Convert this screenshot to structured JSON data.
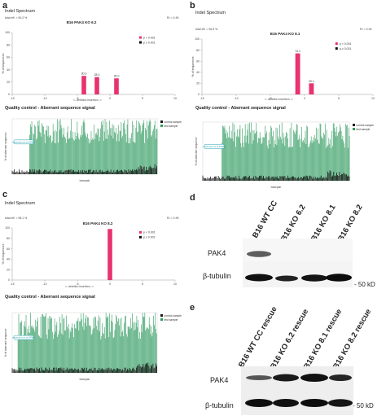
{
  "figure": {
    "panel_a": {
      "letter": "a",
      "indel_header": "Indel Spectrum",
      "chart_title": "B16 PAK4 KO 6.2",
      "total_eff": "total eff. = 90.2 %",
      "r2": "R² = 0.90",
      "legend": [
        "p < 0.001",
        "p ≥ 0.001"
      ],
      "ylabel": "% of sequences",
      "x_hint": "<- deletion   insertion ->",
      "qc_header": "Quality control - Aberrant sequence signal",
      "qc_ylabel": "% of aberrant sequence",
      "qc_xlabel": "basepair",
      "qc_legend": [
        "control sample",
        "test sample"
      ],
      "qc_tag": "expected cut at 189bp"
    },
    "panel_b": {
      "letter": "b",
      "indel_header": "Indel Spectrum",
      "chart_title": "B16 PAK4 KO 8.1",
      "total_eff": "total eff. = 96.9 %",
      "r2": "R² = 0.93",
      "legend": [
        "p < 0.001",
        "p ≥ 0.001"
      ],
      "ylabel": "% of sequences",
      "x_hint": "<- deletion   insertion ->",
      "qc_header": "Quality control - Aberrant sequence signal",
      "qc_ylabel": "% of aberrant sequence",
      "qc_xlabel": "basepair",
      "qc_legend": [
        "control sample",
        "test sample"
      ],
      "qc_tag": "expected cut at 189bp"
    },
    "panel_c": {
      "letter": "c",
      "indel_header": "Indel Spectrum",
      "chart_title": "B16 PAK4 KO 8.2",
      "total_eff": "total eff. = 98.1 %",
      "r2": "R² = 0.99",
      "legend": [
        "p < 0.001",
        "p ≥ 0.001"
      ],
      "ylabel": "% of sequences",
      "x_hint": "<- deletion   insertion ->",
      "qc_header": "Quality control - Aberrant sequence signal",
      "qc_ylabel": "% of aberrant sequence",
      "qc_xlabel": "basepair",
      "qc_legend": [
        "control sample",
        "test sample"
      ],
      "qc_tag": "expected cut at 189bp"
    },
    "panel_d": {
      "letter": "d",
      "lanes": [
        "B16 WT CC",
        "B16 KO 6.2",
        "B16 KO 8.1",
        "B16 KO 8.2"
      ],
      "rows": [
        "PAK4",
        "β-tubulin"
      ],
      "marker": "- 50 kD"
    },
    "panel_e": {
      "letter": "e",
      "lanes": [
        "B16 WT CC rescue",
        "B16 KO 6.2 rescue",
        "B16 KO 8.1 rescue",
        "B16 KO 8.2 rescue"
      ],
      "rows": [
        "PAK4",
        "β-tubulin"
      ],
      "marker": "- 50 kD"
    },
    "colors": {
      "significant": "#e8336e",
      "not_significant": "#111111",
      "test_sample": "#2e9a5e",
      "control_sample": "#1a1a1a",
      "cut_tag": "#2aa3b5"
    }
  },
  "chart_data": [
    {
      "type": "bar",
      "title": "B16 PAK4 KO 6.2",
      "ylabel": "% of sequences",
      "xlim": [
        -15,
        10
      ],
      "ylim": [
        0,
        100
      ],
      "x_ticks": [
        -15,
        -10,
        -5,
        0,
        5,
        10
      ],
      "y_ticks": [
        0,
        20,
        40,
        60,
        80,
        100
      ],
      "series": [
        {
          "name": "p < 0.001",
          "x": [
            -4,
            -2,
            1
          ],
          "values": [
            30.0,
            28.0,
            26.0
          ],
          "labels": [
            "30.0",
            "28.0",
            "26.0"
          ]
        }
      ]
    },
    {
      "type": "bar",
      "title": "B16 PAK4 KO 8.1",
      "ylabel": "% of sequences",
      "xlim": [
        -15,
        10
      ],
      "ylim": [
        0,
        100
      ],
      "x_ticks": [
        -15,
        -10,
        -5,
        0,
        5,
        10
      ],
      "y_ticks": [
        0,
        20,
        40,
        60,
        80,
        100
      ],
      "series": [
        {
          "name": "p < 0.001",
          "x": [
            -1,
            1
          ],
          "values": [
            74.1,
            20.1
          ],
          "labels": [
            "74.1",
            "20.1"
          ]
        }
      ]
    },
    {
      "type": "bar",
      "title": "B16 PAK4 KO 8.2",
      "ylabel": "% of sequences",
      "xlim": [
        -15,
        10
      ],
      "ylim": [
        0,
        100
      ],
      "x_ticks": [
        -15,
        -10,
        -5,
        0,
        5,
        10
      ],
      "y_ticks": [
        0,
        20,
        40,
        60,
        80,
        100
      ],
      "series": [
        {
          "name": "p < 0.001",
          "x": [
            0
          ],
          "values": [
            98.0
          ],
          "labels": [
            ""
          ]
        }
      ]
    }
  ]
}
